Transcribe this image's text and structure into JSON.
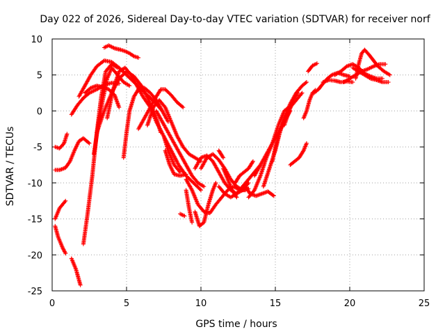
{
  "chart_data": {
    "type": "scatter",
    "title": "Day 022 of 2026, Sidereal Day-to-day VTEC variation (SDTVAR) for receiver norf",
    "xlabel": "GPS time / hours",
    "ylabel": "SDTVAR / TECUs",
    "xlim": [
      0,
      25
    ],
    "ylim": [
      -25,
      10
    ],
    "x_ticks": [
      "0",
      "5",
      "10",
      "15",
      "20",
      "25"
    ],
    "y_ticks": [
      "10",
      "5",
      "0",
      "-5",
      "-10",
      "-15",
      "-20",
      "-25"
    ],
    "x_tick_values": [
      0,
      5,
      10,
      15,
      20,
      25
    ],
    "y_tick_values": [
      10,
      5,
      0,
      -5,
      -10,
      -15,
      -20,
      -25
    ],
    "grid": true,
    "marker": "+",
    "color": "#ff0000",
    "tracks": [
      [
        [
          0.2,
          -15
        ],
        [
          0.5,
          -13.5
        ],
        [
          0.9,
          -12.5
        ]
      ],
      [
        [
          0.2,
          -16
        ],
        [
          0.4,
          -17.5
        ],
        [
          0.7,
          -19
        ],
        [
          0.9,
          -19.8
        ]
      ],
      [
        [
          1.3,
          -20.5
        ],
        [
          1.6,
          -22
        ],
        [
          1.9,
          -24.2
        ]
      ],
      [
        [
          0.2,
          -5
        ],
        [
          0.5,
          -5.2
        ],
        [
          0.8,
          -4.5
        ],
        [
          1.0,
          -3.2
        ]
      ],
      [
        [
          0.2,
          -8.2
        ],
        [
          0.5,
          -8.2
        ],
        [
          0.9,
          -7.9
        ],
        [
          1.2,
          -7
        ],
        [
          1.5,
          -5.5
        ],
        [
          1.8,
          -4.2
        ],
        [
          2.1,
          -3.8
        ],
        [
          2.5,
          -4.5
        ]
      ],
      [
        [
          1.3,
          -0.5
        ],
        [
          1.7,
          0.8
        ],
        [
          2.1,
          1.8
        ],
        [
          2.5,
          2.5
        ],
        [
          3.0,
          3.0
        ],
        [
          3.5,
          3.6
        ],
        [
          4.0,
          3.9
        ],
        [
          4.5,
          3.8
        ]
      ],
      [
        [
          2.1,
          -18.5
        ],
        [
          2.4,
          -14
        ],
        [
          2.7,
          -9
        ],
        [
          3.0,
          -3
        ],
        [
          3.3,
          2
        ],
        [
          3.6,
          5.5
        ],
        [
          4.0,
          6.5
        ],
        [
          4.4,
          6.0
        ]
      ],
      [
        [
          2.8,
          -6
        ],
        [
          3.1,
          -2
        ],
        [
          3.4,
          1.5
        ],
        [
          3.7,
          4.5
        ],
        [
          4.0,
          6.0
        ],
        [
          4.4,
          5.0
        ],
        [
          4.8,
          4.0
        ],
        [
          5.2,
          3.5
        ]
      ],
      [
        [
          2.2,
          2.5
        ],
        [
          2.6,
          3.2
        ],
        [
          3.0,
          3.5
        ],
        [
          3.4,
          3.3
        ],
        [
          3.8,
          3.0
        ],
        [
          4.2,
          2.2
        ],
        [
          4.5,
          0.5
        ]
      ],
      [
        [
          1.8,
          2.0
        ],
        [
          2.2,
          3.5
        ],
        [
          2.6,
          5.0
        ],
        [
          3.0,
          6.2
        ],
        [
          3.5,
          7.0
        ],
        [
          4.0,
          6.8
        ],
        [
          4.5,
          6.0
        ],
        [
          5.0,
          5.0
        ],
        [
          5.5,
          4.0
        ],
        [
          6.0,
          3.0
        ],
        [
          6.5,
          2.0
        ],
        [
          7.0,
          1.0
        ],
        [
          7.4,
          0.0
        ]
      ],
      [
        [
          3.5,
          8.8
        ],
        [
          3.8,
          9.1
        ],
        [
          4.2,
          8.7
        ],
        [
          4.6,
          8.5
        ],
        [
          4.9,
          8.3
        ],
        [
          5.2,
          8.0
        ],
        [
          5.5,
          7.6
        ],
        [
          5.8,
          7.4
        ]
      ],
      [
        [
          3.0,
          -3
        ],
        [
          3.5,
          0
        ],
        [
          4.0,
          2.5
        ],
        [
          4.5,
          4.5
        ],
        [
          5.0,
          5.5
        ],
        [
          5.5,
          4.8
        ],
        [
          6.0,
          3.5
        ],
        [
          6.5,
          1.5
        ],
        [
          7.0,
          -1
        ],
        [
          7.3,
          -3
        ]
      ],
      [
        [
          3.7,
          -1
        ],
        [
          4.1,
          3
        ],
        [
          4.5,
          5.5
        ],
        [
          4.9,
          6.0
        ],
        [
          5.3,
          5.0
        ],
        [
          5.7,
          3.5
        ],
        [
          6.1,
          2.0
        ],
        [
          6.6,
          0.5
        ],
        [
          7.0,
          -1.5
        ],
        [
          7.5,
          -3.5
        ],
        [
          8.0,
          -5.5
        ],
        [
          8.5,
          -7.5
        ],
        [
          9.0,
          -9.0
        ],
        [
          9.5,
          -10
        ],
        [
          10.0,
          -11
        ]
      ],
      [
        [
          4.8,
          -6.5
        ],
        [
          5.0,
          -3
        ],
        [
          5.2,
          0
        ],
        [
          5.5,
          2.0
        ],
        [
          5.8,
          3.0
        ],
        [
          6.2,
          3.2
        ],
        [
          6.6,
          2.5
        ],
        [
          7.0,
          1.5
        ],
        [
          7.4,
          0.0
        ],
        [
          7.8,
          -1.5
        ]
      ],
      [
        [
          5.8,
          -2.5
        ],
        [
          6.2,
          -1
        ],
        [
          6.6,
          0.5
        ],
        [
          7.0,
          2.0
        ],
        [
          7.3,
          3.0
        ],
        [
          7.6,
          3.0
        ],
        [
          8.0,
          2.2
        ],
        [
          8.4,
          1.2
        ],
        [
          8.8,
          0.5
        ]
      ],
      [
        [
          6.4,
          -2
        ],
        [
          6.8,
          0.5
        ],
        [
          7.2,
          1.5
        ],
        [
          7.6,
          0.5
        ],
        [
          8.0,
          -1.5
        ],
        [
          8.4,
          -3.5
        ],
        [
          8.8,
          -5.0
        ],
        [
          9.2,
          -6.0
        ],
        [
          9.6,
          -6.5
        ],
        [
          10.0,
          -7.0
        ]
      ],
      [
        [
          7.0,
          0.0
        ],
        [
          7.4,
          -1.5
        ],
        [
          7.8,
          -3.0
        ],
        [
          8.2,
          -4.5
        ],
        [
          8.6,
          -6.0
        ],
        [
          9.0,
          -7.5
        ],
        [
          9.4,
          -9.0
        ],
        [
          9.8,
          -10.0
        ],
        [
          10.2,
          -10.5
        ]
      ],
      [
        [
          7.6,
          -5.5
        ],
        [
          7.9,
          -7.5
        ],
        [
          8.2,
          -8.8
        ],
        [
          8.6,
          -9.0
        ],
        [
          9.0,
          -8.8
        ]
      ],
      [
        [
          7.5,
          -3.5
        ],
        [
          7.8,
          -5.5
        ],
        [
          8.2,
          -7.5
        ],
        [
          8.6,
          -8.5
        ]
      ],
      [
        [
          9.0,
          -9.5
        ],
        [
          9.4,
          -11
        ],
        [
          9.8,
          -13
        ],
        [
          10.2,
          -14
        ],
        [
          10.6,
          -14.2
        ],
        [
          11.0,
          -13
        ],
        [
          11.4,
          -12
        ],
        [
          11.8,
          -11
        ],
        [
          12.2,
          -10.5
        ],
        [
          12.6,
          -11
        ],
        [
          13.0,
          -11
        ]
      ],
      [
        [
          9.6,
          -14
        ],
        [
          9.9,
          -16
        ],
        [
          10.2,
          -15.5
        ],
        [
          10.5,
          -13
        ],
        [
          10.8,
          -11
        ],
        [
          11.0,
          -10
        ]
      ],
      [
        [
          9.0,
          -11
        ],
        [
          9.2,
          -13.5
        ],
        [
          9.4,
          -15.5
        ]
      ],
      [
        [
          8.6,
          -14.3
        ],
        [
          8.9,
          -14.6
        ]
      ],
      [
        [
          10.0,
          -8.0
        ],
        [
          10.4,
          -6.5
        ],
        [
          10.8,
          -6.0
        ],
        [
          11.2,
          -6.8
        ],
        [
          11.6,
          -8.0
        ],
        [
          12.0,
          -9.5
        ],
        [
          12.4,
          -10.5
        ],
        [
          12.8,
          -11.0
        ],
        [
          13.2,
          -10.8
        ]
      ],
      [
        [
          9.6,
          -8.0
        ],
        [
          10.0,
          -6.5
        ],
        [
          10.4,
          -6.2
        ],
        [
          10.8,
          -7.0
        ],
        [
          11.2,
          -8.5
        ],
        [
          11.6,
          -10
        ],
        [
          12.0,
          -11
        ],
        [
          12.4,
          -11.5
        ],
        [
          12.8,
          -11.0
        ],
        [
          13.2,
          -10.0
        ]
      ],
      [
        [
          11.2,
          -10.5
        ],
        [
          11.6,
          -11.5
        ],
        [
          12.0,
          -12.0
        ],
        [
          12.4,
          -11.5
        ],
        [
          12.8,
          -10.5
        ],
        [
          13.2,
          -9.5
        ],
        [
          13.6,
          -8.5
        ],
        [
          14.0,
          -7.5
        ]
      ],
      [
        [
          11.5,
          -8.0
        ],
        [
          11.8,
          -9.5
        ],
        [
          12.1,
          -11.0
        ],
        [
          12.4,
          -12.0
        ]
      ],
      [
        [
          11.2,
          -5.5
        ],
        [
          11.5,
          -6.5
        ]
      ],
      [
        [
          12.3,
          -10.0
        ],
        [
          12.6,
          -9.0
        ],
        [
          12.9,
          -8.5
        ],
        [
          13.2,
          -8.0
        ],
        [
          13.5,
          -7.0
        ]
      ],
      [
        [
          13.0,
          -10.5
        ],
        [
          13.3,
          -11.5
        ],
        [
          13.7,
          -11.8
        ],
        [
          14.1,
          -11.5
        ],
        [
          14.5,
          -11.2
        ],
        [
          14.9,
          -11.8
        ]
      ],
      [
        [
          13.2,
          -12.0
        ],
        [
          13.6,
          -11.0
        ],
        [
          14.0,
          -9.0
        ],
        [
          14.4,
          -6.5
        ],
        [
          14.8,
          -4.5
        ],
        [
          15.2,
          -2.0
        ],
        [
          15.6,
          0.0
        ],
        [
          15.9,
          0.5
        ]
      ],
      [
        [
          13.6,
          -9.0
        ],
        [
          14.0,
          -7.5
        ],
        [
          14.4,
          -6.0
        ],
        [
          14.8,
          -4.5
        ],
        [
          15.2,
          -3.0
        ],
        [
          15.6,
          -1.5
        ],
        [
          16.0,
          0.0
        ]
      ],
      [
        [
          14.2,
          -10.5
        ],
        [
          14.6,
          -8.0
        ],
        [
          15.0,
          -5.5
        ],
        [
          15.3,
          -3.0
        ],
        [
          15.6,
          -1.0
        ],
        [
          16.0,
          0.5
        ],
        [
          16.4,
          1.5
        ],
        [
          16.8,
          2.5
        ]
      ],
      [
        [
          14.8,
          -7.0
        ],
        [
          15.0,
          -5.0
        ],
        [
          15.3,
          -3.0
        ],
        [
          15.6,
          -1.0
        ],
        [
          16.0,
          1.0
        ],
        [
          16.4,
          2.5
        ],
        [
          16.8,
          3.5
        ],
        [
          17.1,
          4.0
        ]
      ],
      [
        [
          15.6,
          -2.0
        ],
        [
          15.9,
          -0.2
        ],
        [
          16.2,
          1.5
        ],
        [
          16.5,
          2.5
        ]
      ],
      [
        [
          16.0,
          -7.5
        ],
        [
          16.3,
          -7.0
        ],
        [
          16.6,
          -6.5
        ],
        [
          16.9,
          -5.5
        ],
        [
          17.1,
          -4.5
        ]
      ],
      [
        [
          16.9,
          -1.0
        ],
        [
          17.1,
          0.0
        ],
        [
          17.3,
          1.5
        ],
        [
          17.5,
          2.5
        ],
        [
          17.7,
          2.9
        ]
      ],
      [
        [
          17.2,
          5.5
        ],
        [
          17.5,
          6.3
        ],
        [
          17.8,
          6.6
        ]
      ],
      [
        [
          17.6,
          2.5
        ],
        [
          17.9,
          3.0
        ],
        [
          18.2,
          3.8
        ],
        [
          18.5,
          4.5
        ],
        [
          18.8,
          5.0
        ],
        [
          19.2,
          5.3
        ],
        [
          19.6,
          5.0
        ],
        [
          20.0,
          4.8
        ]
      ],
      [
        [
          18.2,
          4.0
        ],
        [
          18.6,
          4.3
        ],
        [
          19.0,
          4.2
        ],
        [
          19.4,
          4.0
        ],
        [
          19.8,
          4.1
        ],
        [
          20.2,
          4.0
        ]
      ],
      [
        [
          19.0,
          5.0
        ],
        [
          19.4,
          5.5
        ],
        [
          19.8,
          6.2
        ],
        [
          20.2,
          6.5
        ],
        [
          20.6,
          6.0
        ],
        [
          21.0,
          5.2
        ],
        [
          21.4,
          4.8
        ],
        [
          21.8,
          4.5
        ],
        [
          22.2,
          4.5
        ]
      ],
      [
        [
          19.6,
          4.0
        ],
        [
          20.0,
          4.5
        ],
        [
          20.4,
          5.0
        ],
        [
          20.8,
          5.5
        ],
        [
          21.2,
          5.8
        ],
        [
          21.6,
          6.2
        ],
        [
          22.0,
          6.5
        ],
        [
          22.4,
          6.5
        ]
      ],
      [
        [
          20.4,
          4.5
        ],
        [
          20.6,
          6.5
        ],
        [
          20.8,
          8.0
        ],
        [
          21.0,
          8.5
        ],
        [
          21.3,
          7.8
        ],
        [
          21.6,
          7.0
        ],
        [
          21.9,
          6.2
        ],
        [
          22.3,
          5.5
        ],
        [
          22.7,
          5.0
        ]
      ],
      [
        [
          20.2,
          6.0
        ],
        [
          20.6,
          5.5
        ],
        [
          21.0,
          5.0
        ],
        [
          21.4,
          4.5
        ],
        [
          21.8,
          4.3
        ],
        [
          22.2,
          4.0
        ],
        [
          22.6,
          4.0
        ]
      ]
    ]
  }
}
